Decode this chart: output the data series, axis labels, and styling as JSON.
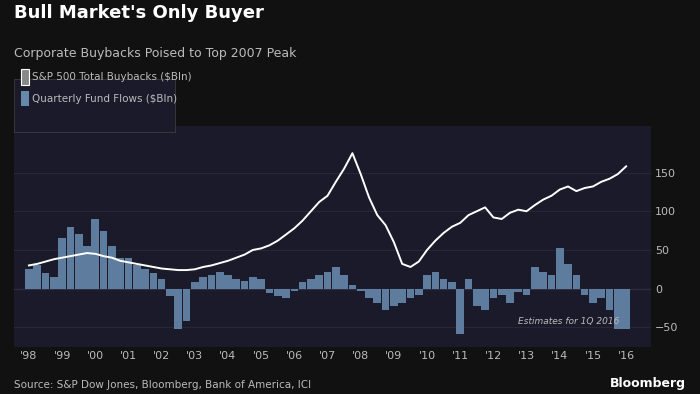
{
  "title": "Bull Market's Only Buyer",
  "subtitle": "Corporate Buybacks Poised to Top 2007 Peak",
  "source": "Source: S&P Dow Jones, Bloomberg, Bank of America, ICI",
  "legend_buybacks": "S&P 500 Total Buybacks ($Bln)",
  "legend_flows": "Quarterly Fund Flows ($Bln)",
  "annotation": "Estimates for 1Q 2016",
  "background_color": "#111111",
  "plot_bg_color": "#1a1a2a",
  "text_color": "#bbbbbb",
  "bar_color": "#6688aa",
  "line_color": "#ffffff",
  "grid_color": "#2a2a3a",
  "x_labels": [
    "'98",
    "'99",
    "'00",
    "'01",
    "'02",
    "'03",
    "'04",
    "'05",
    "'06",
    "'07",
    "'08",
    "'09",
    "'10",
    "'11",
    "'12",
    "'13",
    "'14",
    "'15",
    "'16"
  ],
  "ylim": [
    -75,
    210
  ],
  "yticks": [
    -50,
    0,
    50,
    100,
    150
  ],
  "n_quarters": 73,
  "start_year": 1998,
  "fund_flows": [
    25,
    30,
    20,
    15,
    65,
    80,
    70,
    55,
    90,
    75,
    55,
    40,
    40,
    30,
    25,
    20,
    12,
    -10,
    -52,
    -42,
    8,
    15,
    18,
    22,
    18,
    12,
    10,
    15,
    12,
    -5,
    -10,
    -12,
    -3,
    8,
    12,
    18,
    22,
    28,
    18,
    5,
    -3,
    -12,
    -18,
    -28,
    -22,
    -18,
    -12,
    -8,
    18,
    22,
    12,
    8,
    -58,
    12,
    -22,
    -28,
    -12,
    -8,
    -18,
    -4,
    -8,
    28,
    22,
    18,
    52,
    32,
    18,
    -8,
    -18,
    -12,
    -28,
    -52,
    -52
  ],
  "buybacks": [
    30,
    32,
    35,
    38,
    40,
    42,
    44,
    46,
    45,
    42,
    40,
    36,
    34,
    32,
    30,
    28,
    26,
    25,
    24,
    24,
    25,
    28,
    30,
    33,
    36,
    40,
    44,
    50,
    52,
    56,
    62,
    70,
    78,
    88,
    100,
    112,
    120,
    138,
    155,
    175,
    148,
    118,
    95,
    82,
    60,
    32,
    28,
    35,
    50,
    62,
    72,
    80,
    85,
    95,
    100,
    105,
    92,
    90,
    98,
    102,
    100,
    108,
    115,
    120,
    128,
    132,
    126,
    130,
    132,
    138,
    142,
    148,
    158
  ]
}
